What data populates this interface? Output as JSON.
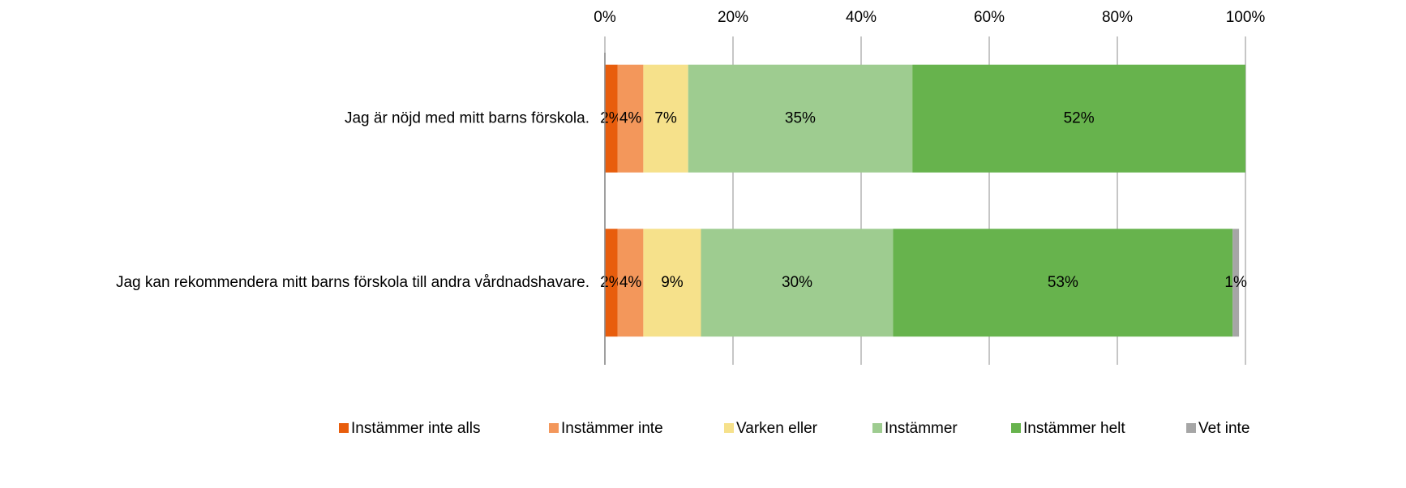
{
  "chart_data": {
    "type": "stacked-bar-horizontal",
    "categories": [
      "Jag är nöjd med mitt barns förskola.",
      "Jag kan rekommendera mitt barns förskola till andra vårdnadshavare."
    ],
    "series": [
      {
        "name": "Instämmer inte alls",
        "color": "#e85d0c",
        "values": [
          2,
          2
        ],
        "value_labels": [
          "2%",
          "2%"
        ]
      },
      {
        "name": "Instämmer inte",
        "color": "#f3975b",
        "values": [
          4,
          4
        ],
        "value_labels": [
          "4%",
          "4%"
        ]
      },
      {
        "name": "Varken eller",
        "color": "#f6e18b",
        "values": [
          7,
          9
        ],
        "value_labels": [
          "7%",
          "9%"
        ]
      },
      {
        "name": "Instämmer",
        "color": "#9ecc90",
        "values": [
          35,
          30
        ],
        "value_labels": [
          "35%",
          "30%"
        ]
      },
      {
        "name": "Instämmer helt",
        "color": "#67b34d",
        "values": [
          52,
          53
        ],
        "value_labels": [
          "52%",
          "53%"
        ]
      },
      {
        "name": "Vet inte",
        "color": "#a6a6a6",
        "values": [
          0,
          1
        ],
        "value_labels": [
          null,
          "1%"
        ]
      }
    ],
    "xlim": [
      0,
      100
    ],
    "xticks": [
      {
        "value": 0,
        "label": "0%"
      },
      {
        "value": 20,
        "label": "20%"
      },
      {
        "value": 40,
        "label": "40%"
      },
      {
        "value": 60,
        "label": "60%"
      },
      {
        "value": 80,
        "label": "80%"
      },
      {
        "value": 100,
        "label": "100%"
      }
    ],
    "grid": true,
    "legend": "bottom"
  }
}
